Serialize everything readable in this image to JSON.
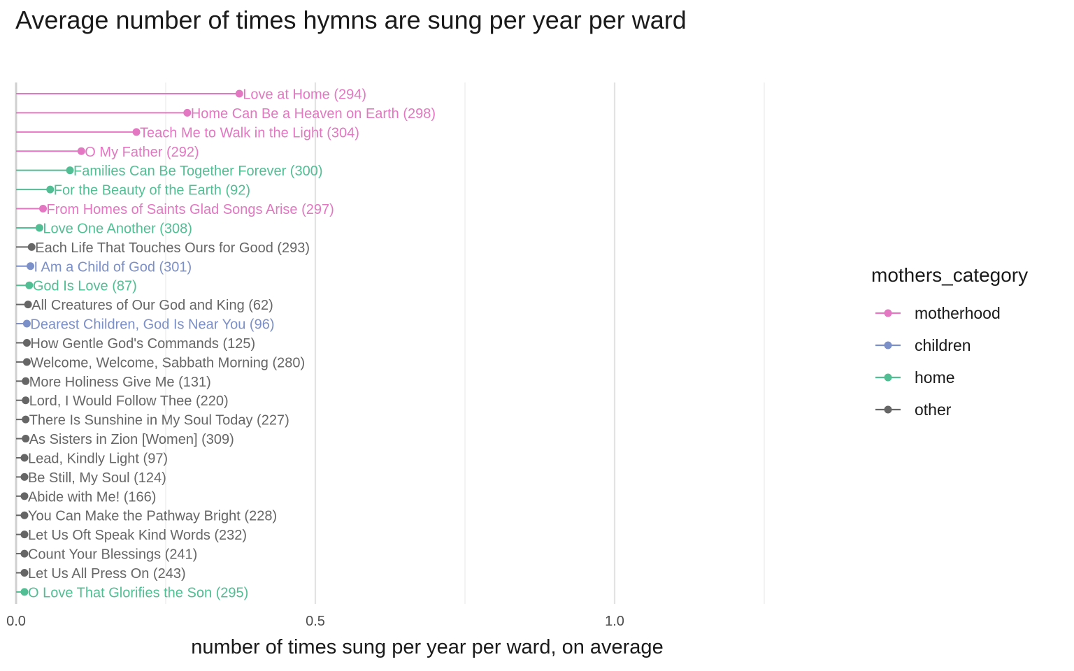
{
  "chart_data": {
    "type": "lollipop",
    "title": "Average number of times hymns are sung per year per ward",
    "xlabel": "number of times sung per year per ward, on average",
    "xlim": [
      0,
      1.5
    ],
    "x_ticks": [
      {
        "value": 0.0,
        "label": "0.0"
      },
      {
        "value": 0.5,
        "label": "0.5"
      },
      {
        "value": 1.0,
        "label": "1.0"
      }
    ],
    "x_minor_gridlines": [
      0.25,
      0.75,
      1.25
    ],
    "grid": true,
    "legend": {
      "title": "mothers_category",
      "placement": "right",
      "entries": [
        {
          "category": "motherhood",
          "color": "#E377C2"
        },
        {
          "category": "children",
          "color": "#7B8FC8"
        },
        {
          "category": "home",
          "color": "#52BE94"
        },
        {
          "category": "other",
          "color": "#666666"
        }
      ]
    },
    "points": [
      {
        "label": "Love at Home (294)",
        "value": 0.373,
        "category": "motherhood"
      },
      {
        "label": "Home Can Be a Heaven on Earth (298)",
        "value": 0.286,
        "category": "motherhood"
      },
      {
        "label": "Teach Me to Walk in the Light (304)",
        "value": 0.201,
        "category": "motherhood"
      },
      {
        "label": "O My Father (292)",
        "value": 0.109,
        "category": "motherhood"
      },
      {
        "label": "Families Can Be Together Forever (300)",
        "value": 0.09,
        "category": "home"
      },
      {
        "label": "For the Beauty of the Earth (92)",
        "value": 0.057,
        "category": "home"
      },
      {
        "label": "From Homes of Saints Glad Songs Arise (297)",
        "value": 0.045,
        "category": "motherhood"
      },
      {
        "label": "Love One Another (308)",
        "value": 0.039,
        "category": "home"
      },
      {
        "label": "Each Life That Touches Ours for Good (293)",
        "value": 0.026,
        "category": "other"
      },
      {
        "label": "I Am a Child of God (301)",
        "value": 0.024,
        "category": "children"
      },
      {
        "label": "God Is Love (87)",
        "value": 0.022,
        "category": "home"
      },
      {
        "label": "All Creatures of Our God and King (62)",
        "value": 0.02,
        "category": "other"
      },
      {
        "label": "Dearest Children, God Is Near You (96)",
        "value": 0.018,
        "category": "children"
      },
      {
        "label": "How Gentle God's Commands (125)",
        "value": 0.018,
        "category": "other"
      },
      {
        "label": "Welcome, Welcome, Sabbath Morning (280)",
        "value": 0.018,
        "category": "other"
      },
      {
        "label": "More Holiness Give Me (131)",
        "value": 0.016,
        "category": "other"
      },
      {
        "label": "Lord, I Would Follow Thee (220)",
        "value": 0.016,
        "category": "other"
      },
      {
        "label": "There Is Sunshine in My Soul Today (227)",
        "value": 0.016,
        "category": "other"
      },
      {
        "label": "As Sisters in Zion [Women] (309)",
        "value": 0.016,
        "category": "other"
      },
      {
        "label": "Lead, Kindly Light (97)",
        "value": 0.014,
        "category": "other"
      },
      {
        "label": "Be Still, My Soul (124)",
        "value": 0.014,
        "category": "other"
      },
      {
        "label": "Abide with Me! (166)",
        "value": 0.014,
        "category": "other"
      },
      {
        "label": "You Can Make the Pathway Bright (228)",
        "value": 0.014,
        "category": "other"
      },
      {
        "label": "Let Us Oft Speak Kind Words (232)",
        "value": 0.014,
        "category": "other"
      },
      {
        "label": "Count Your Blessings (241)",
        "value": 0.014,
        "category": "other"
      },
      {
        "label": "Let Us All Press On (243)",
        "value": 0.014,
        "category": "other"
      },
      {
        "label": "O Love That Glorifies the Son (295)",
        "value": 0.014,
        "category": "home"
      }
    ]
  }
}
